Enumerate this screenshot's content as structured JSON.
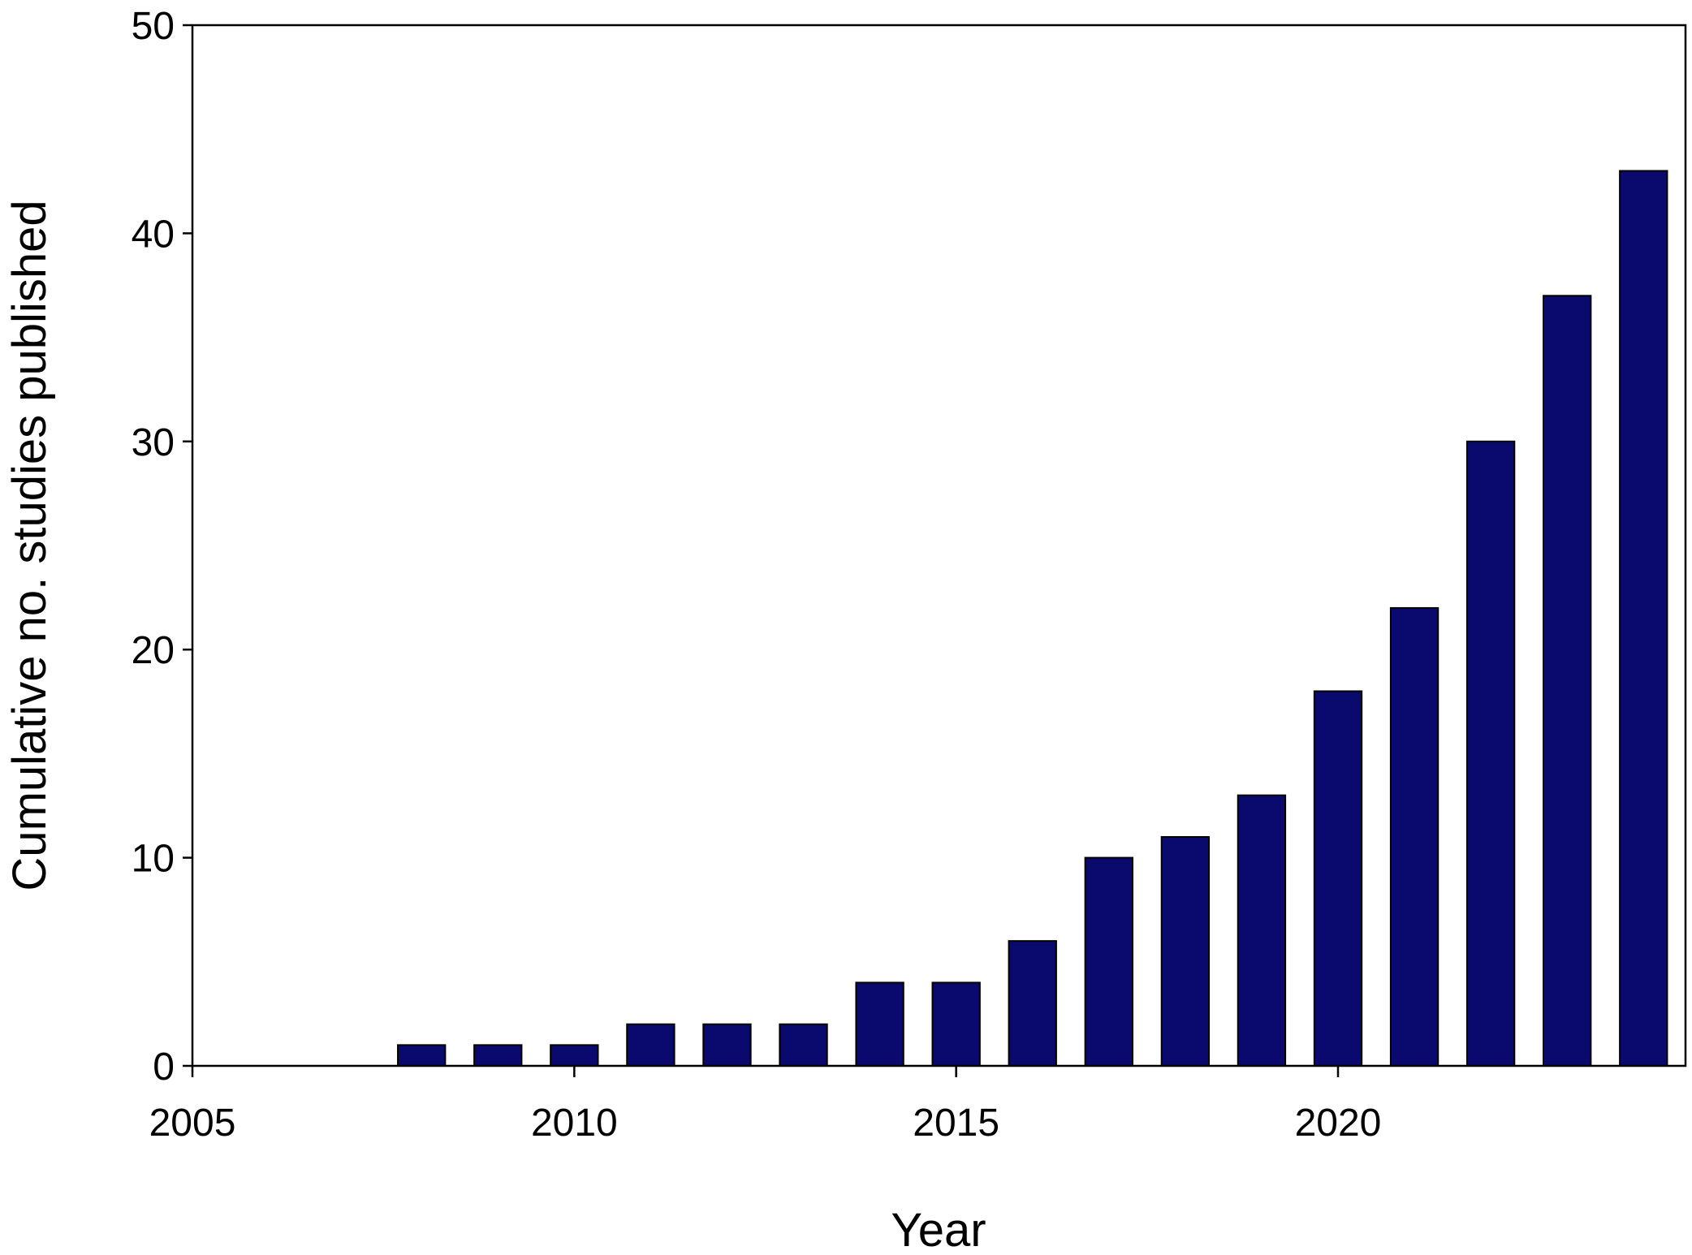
{
  "chart_data": {
    "type": "bar",
    "x_label": "Year",
    "y_label": "Cumulative no. studies published",
    "x": [
      2008,
      2009,
      2010,
      2011,
      2012,
      2013,
      2014,
      2015,
      2016,
      2017,
      2018,
      2019,
      2020,
      2021,
      2022,
      2023,
      2024
    ],
    "values": [
      1,
      1,
      1,
      2,
      2,
      2,
      4,
      4,
      6,
      10,
      11,
      13,
      18,
      22,
      30,
      37,
      43
    ],
    "color": "#0a0a6e",
    "xlim": [
      2005,
      2024.55
    ],
    "xticks": [
      2005,
      2010,
      2015,
      2020
    ],
    "ylim": [
      0,
      50
    ],
    "yticks": [
      0,
      10,
      20,
      30,
      40,
      50
    ],
    "grid": false
  }
}
